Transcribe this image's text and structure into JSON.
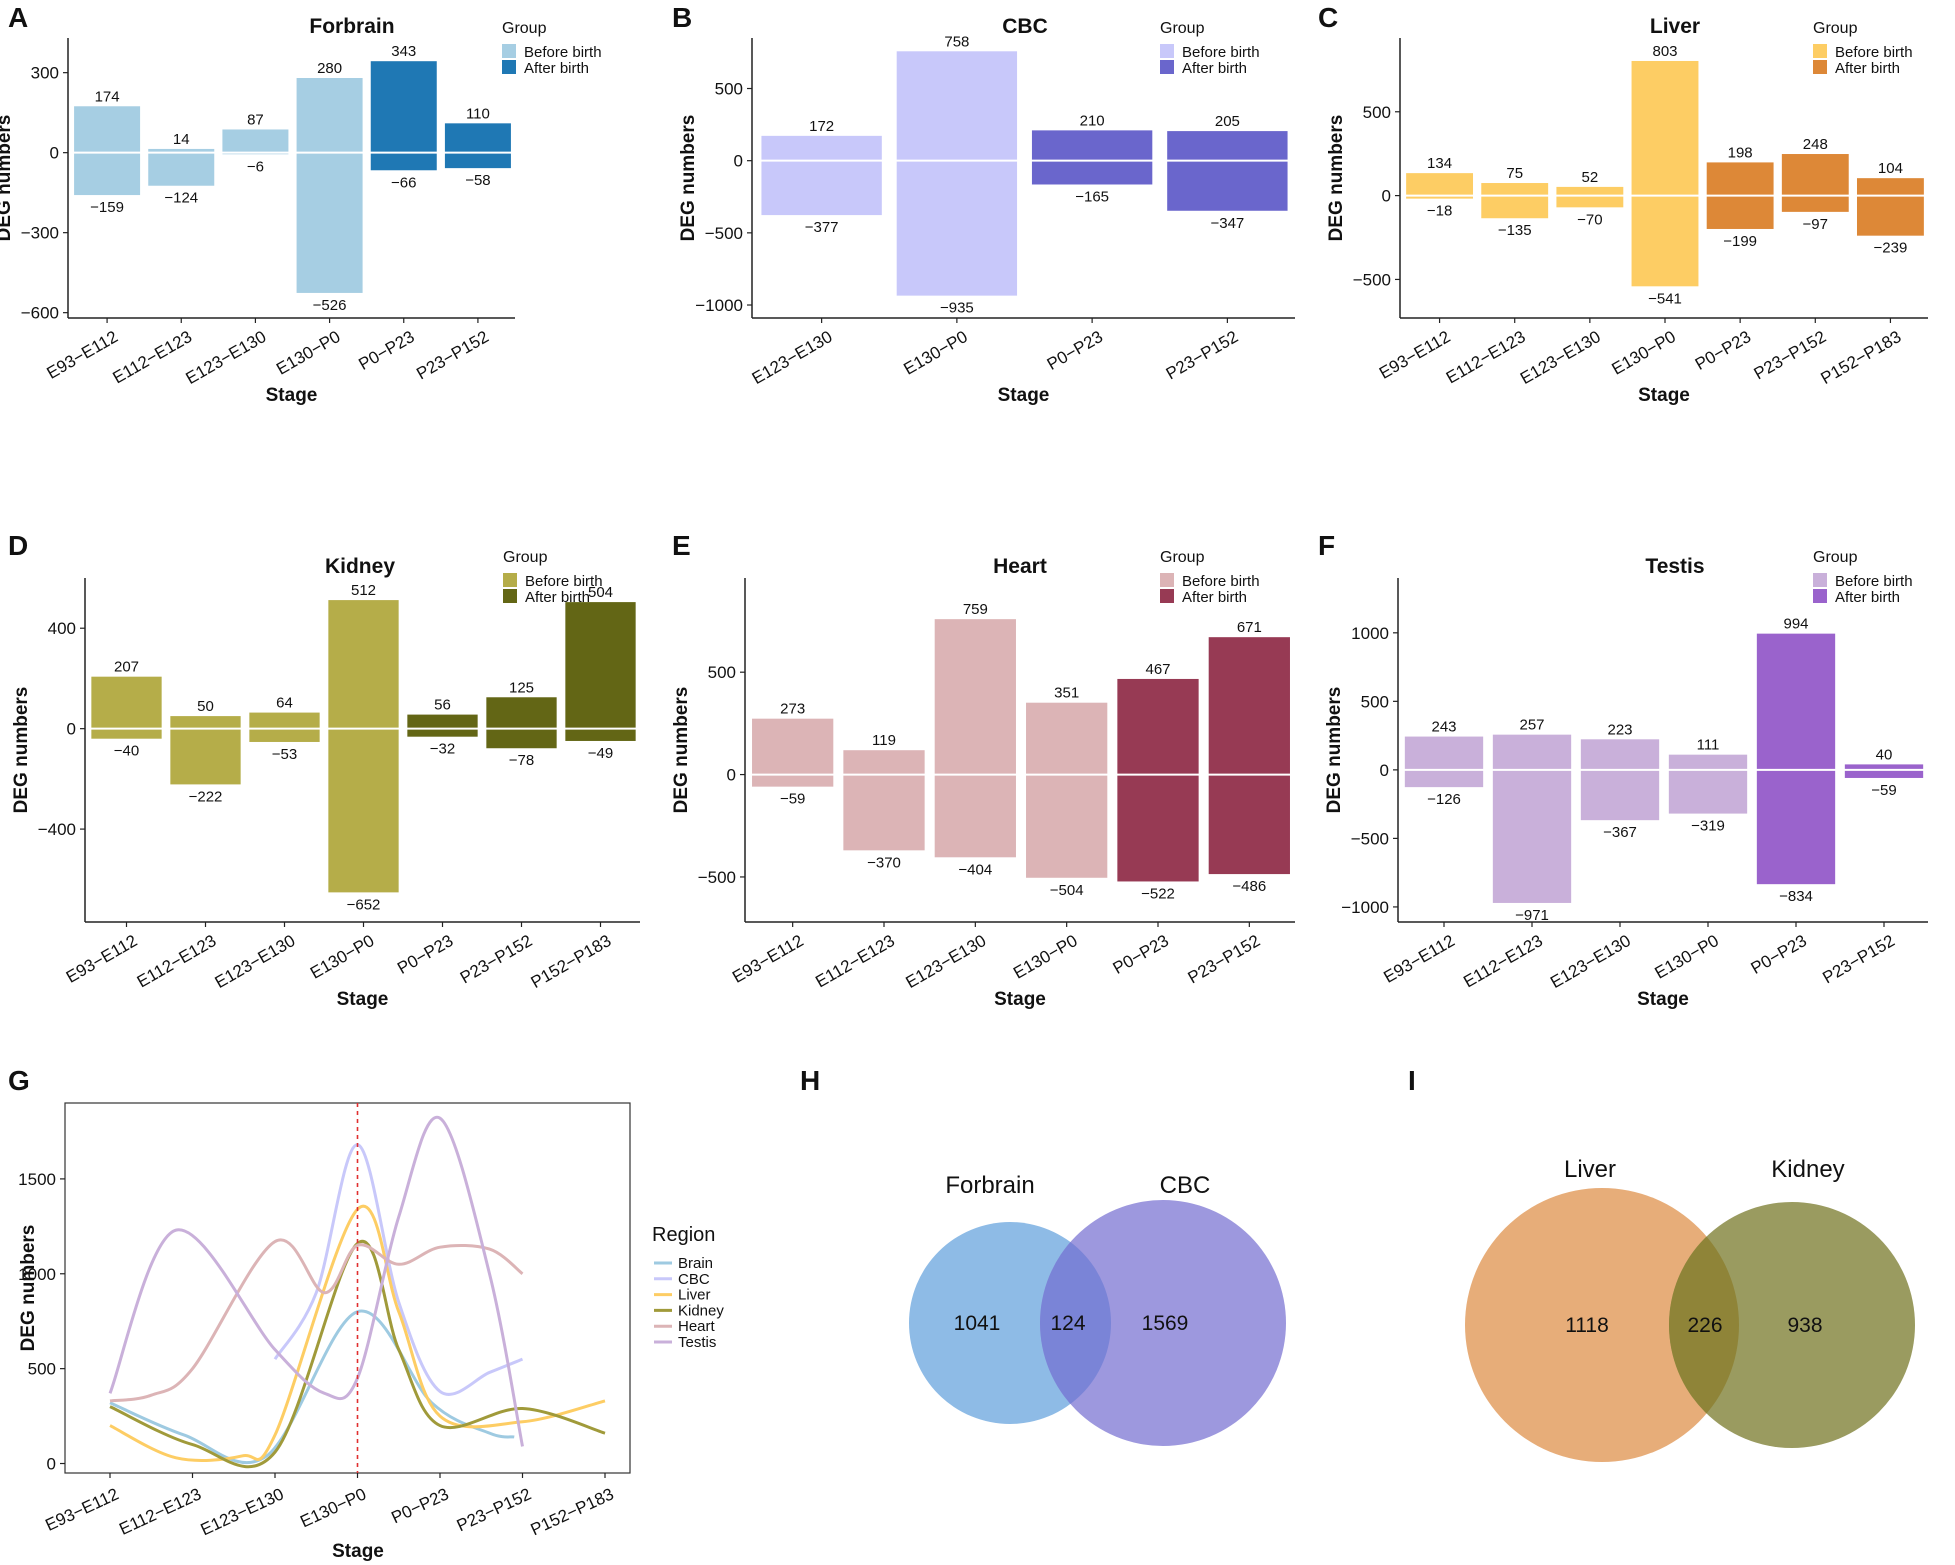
{
  "chart_data": [
    {
      "panel": "A",
      "type": "bar",
      "title": "Forbrain",
      "xlabel": "Stage",
      "ylabel": "DEG numbers",
      "ylim": [
        -620,
        430
      ],
      "yticks": [
        -600,
        -300,
        0,
        300
      ],
      "categories": [
        "E93−E112",
        "E112−E123",
        "E123−E130",
        "E130−P0",
        "P0−P23",
        "P23−P152"
      ],
      "up": [
        174,
        14,
        87,
        280,
        343,
        110
      ],
      "down": [
        -159,
        -124,
        -6,
        -526,
        -66,
        -58
      ],
      "group": [
        "before",
        "before",
        "before",
        "before",
        "after",
        "after"
      ],
      "legend_title": "Group",
      "legend_labels": [
        "Before birth",
        "After birth"
      ],
      "colors": {
        "before": "#a6cee3",
        "after": "#1f78b4"
      }
    },
    {
      "panel": "B",
      "type": "bar",
      "title": "CBC",
      "xlabel": "Stage",
      "ylabel": "DEG numbers",
      "ylim": [
        -1090,
        850
      ],
      "yticks": [
        -1000,
        -500,
        0,
        500
      ],
      "categories": [
        "E123−E130",
        "E130−P0",
        "P0−P23",
        "P23−P152"
      ],
      "up": [
        172,
        758,
        210,
        205
      ],
      "down": [
        -377,
        -935,
        -165,
        -347
      ],
      "group": [
        "before",
        "before",
        "after",
        "after"
      ],
      "legend_title": "Group",
      "legend_labels": [
        "Before birth",
        "After birth"
      ],
      "colors": {
        "before": "#c8c8fa",
        "after": "#6a66cc"
      }
    },
    {
      "panel": "C",
      "type": "bar",
      "title": "Liver",
      "xlabel": "Stage",
      "ylabel": "DEG numbers",
      "ylim": [
        -730,
        940
      ],
      "yticks": [
        -500,
        0,
        500
      ],
      "categories": [
        "E93−E112",
        "E112−E123",
        "E123−E130",
        "E130−P0",
        "P0−P23",
        "P23−P152",
        "P152−P183"
      ],
      "up": [
        134,
        75,
        52,
        803,
        198,
        248,
        104
      ],
      "down": [
        -18,
        -135,
        -70,
        -541,
        -199,
        -97,
        -239
      ],
      "group": [
        "before",
        "before",
        "before",
        "before",
        "after",
        "after",
        "after"
      ],
      "legend_title": "Group",
      "legend_labels": [
        "Before birth",
        "After birth"
      ],
      "colors": {
        "before": "#fdcd64",
        "after": "#dd8837"
      }
    },
    {
      "panel": "D",
      "type": "bar",
      "title": "Kidney",
      "xlabel": "Stage",
      "ylabel": "DEG numbers",
      "ylim": [
        -770,
        600
      ],
      "yticks": [
        -400,
        0,
        400
      ],
      "categories": [
        "E93−E112",
        "E112−E123",
        "E123−E130",
        "E130−P0",
        "P0−P23",
        "P23−P152",
        "P152−P183"
      ],
      "up": [
        207,
        50,
        64,
        512,
        56,
        125,
        504
      ],
      "down": [
        -40,
        -222,
        -53,
        -652,
        -32,
        -78,
        -49
      ],
      "group": [
        "before",
        "before",
        "before",
        "before",
        "after",
        "after",
        "after"
      ],
      "legend_title": "Group",
      "legend_labels": [
        "Before birth",
        "After birth"
      ],
      "colors": {
        "before": "#b5ad49",
        "after": "#636615"
      }
    },
    {
      "panel": "E",
      "type": "bar",
      "title": "Heart",
      "xlabel": "Stage",
      "ylabel": "DEG numbers",
      "ylim": [
        -720,
        960
      ],
      "yticks": [
        -500,
        0,
        500
      ],
      "categories": [
        "E93−E112",
        "E112−E123",
        "E123−E130",
        "E130−P0",
        "P0−P23",
        "P23−P152"
      ],
      "up": [
        273,
        119,
        759,
        351,
        467,
        671
      ],
      "down": [
        -59,
        -370,
        -404,
        -504,
        -522,
        -486
      ],
      "group": [
        "before",
        "before",
        "before",
        "before",
        "after",
        "after"
      ],
      "legend_title": "Group",
      "legend_labels": [
        "Before birth",
        "After birth"
      ],
      "colors": {
        "before": "#dcb4b6",
        "after": "#973a54"
      }
    },
    {
      "panel": "F",
      "type": "bar",
      "title": "Testis",
      "xlabel": "Stage",
      "ylabel": "DEG numbers",
      "ylim": [
        -1110,
        1400
      ],
      "yticks": [
        -1000,
        -500,
        0,
        500,
        1000
      ],
      "categories": [
        "E93−E112",
        "E112−E123",
        "E123−E130",
        "E130−P0",
        "P0−P23",
        "P23−P152"
      ],
      "up": [
        243,
        257,
        223,
        111,
        994,
        40
      ],
      "down": [
        -126,
        -971,
        -367,
        -319,
        -834,
        -59
      ],
      "group": [
        "before",
        "before",
        "before",
        "before",
        "after",
        "after"
      ],
      "legend_title": "Group",
      "legend_labels": [
        "Before birth",
        "After birth"
      ],
      "colors": {
        "before": "#c9b0da",
        "after": "#9a63cc"
      }
    },
    {
      "panel": "G",
      "type": "line",
      "xlabel": "Stage",
      "ylabel": "DEG numbers",
      "ylim": [
        -50,
        1900
      ],
      "yticks": [
        0,
        500,
        1000,
        1500
      ],
      "categories": [
        "E93−E112",
        "E112−E123",
        "E123−E130",
        "E130−P0",
        "P0−P23",
        "P23−P152",
        "P152−P183"
      ],
      "vline_at": "E130−P0",
      "legend_title": "Region",
      "series": [
        {
          "name": "Brain",
          "color": "#9ecae1",
          "points": [
            [
              0,
              320
            ],
            [
              0.9,
              150
            ],
            [
              1.9,
              40
            ],
            [
              3,
              800
            ],
            [
              3.9,
              320
            ],
            [
              4.6,
              160
            ],
            [
              4.9,
              140
            ]
          ]
        },
        {
          "name": "CBC",
          "color": "#c8c8fa",
          "points": [
            [
              2,
              550
            ],
            [
              2.5,
              900
            ],
            [
              3,
              1680
            ],
            [
              3.5,
              850
            ],
            [
              4,
              380
            ],
            [
              4.6,
              480
            ],
            [
              5,
              550
            ]
          ]
        },
        {
          "name": "Liver",
          "color": "#fdcd64",
          "points": [
            [
              0,
              200
            ],
            [
              0.8,
              30
            ],
            [
              1.6,
              40
            ],
            [
              2,
              150
            ],
            [
              3,
              1340
            ],
            [
              3.5,
              800
            ],
            [
              4,
              250
            ],
            [
              5,
              220
            ],
            [
              6,
              330
            ]
          ]
        },
        {
          "name": "Kidney",
          "color": "#a09a3a",
          "points": [
            [
              0,
              300
            ],
            [
              1,
              100
            ],
            [
              2,
              60
            ],
            [
              3,
              1160
            ],
            [
              3.5,
              600
            ],
            [
              4,
              200
            ],
            [
              5,
              290
            ],
            [
              6,
              160
            ]
          ]
        },
        {
          "name": "Heart",
          "color": "#dcb4b6",
          "points": [
            [
              0,
              330
            ],
            [
              0.5,
              360
            ],
            [
              1,
              500
            ],
            [
              2,
              1170
            ],
            [
              2.6,
              900
            ],
            [
              3,
              1150
            ],
            [
              3.5,
              1050
            ],
            [
              4,
              1140
            ],
            [
              4.6,
              1130
            ],
            [
              5,
              1000
            ]
          ]
        },
        {
          "name": "Testis",
          "color": "#c9b0da",
          "points": [
            [
              0,
              370
            ],
            [
              0.8,
              1230
            ],
            [
              2,
              600
            ],
            [
              2.6,
              370
            ],
            [
              3,
              450
            ],
            [
              3.5,
              1300
            ],
            [
              4,
              1820
            ],
            [
              4.6,
              1000
            ],
            [
              5,
              90
            ]
          ]
        }
      ]
    },
    {
      "panel": "H",
      "type": "venn",
      "sets": [
        {
          "name": "Forbrain",
          "color": "#8ebbe6",
          "only": 1041
        },
        {
          "name": "CBC",
          "color": "#9d98de",
          "only": 1569
        }
      ],
      "intersection": 124,
      "overlap_color": "#7a84d7"
    },
    {
      "panel": "I",
      "type": "venn",
      "sets": [
        {
          "name": "Liver",
          "color": "#e7ad79",
          "only": 1118
        },
        {
          "name": "Kidney",
          "color": "#9a9b60",
          "only": 938
        }
      ],
      "intersection": 226,
      "overlap_color": "#8f8438"
    }
  ]
}
